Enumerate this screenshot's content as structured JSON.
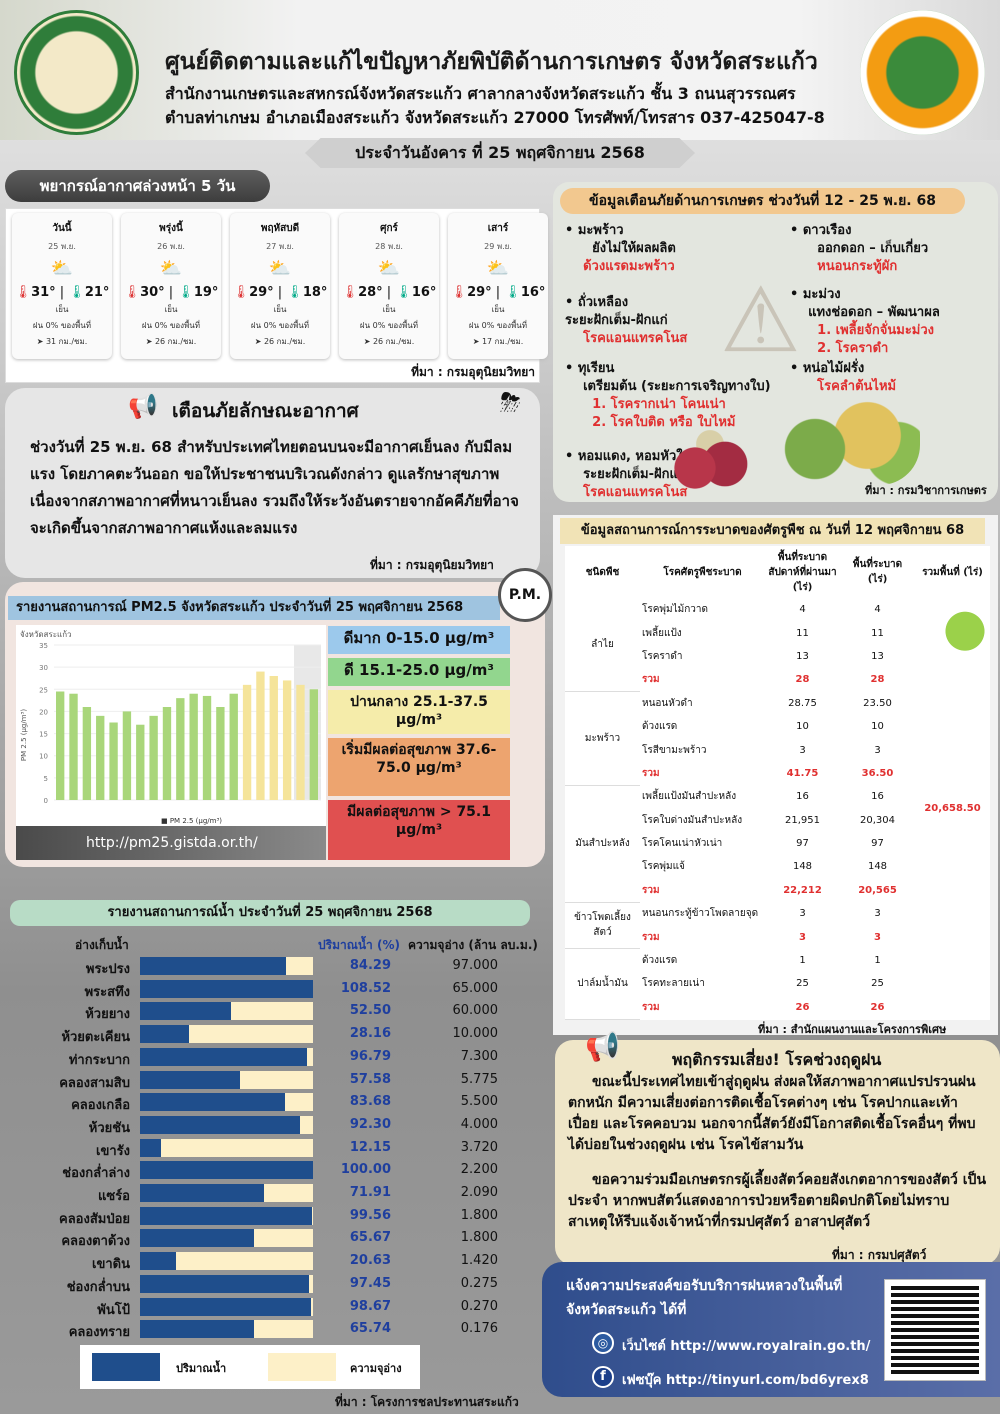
{
  "header": {
    "title": "ศูนย์ติดตามและแก้ไขปัญหาภัยพิบัติด้านการเกษตร จังหวัดสระแก้ว",
    "sub1": "สำนักงานเกษตรและสหกรณ์จังหวัดสระแก้ว ศาลากลางจังหวัดสระแก้ว ชั้น 3 ถนนสุวรรณศร",
    "sub2": "ตำบลท่าเกษม อำเภอเมืองสระแก้ว จังหวัดสระแก้ว 27000 โทรศัพท์/โทรสาร 037-425047-8",
    "date": "ประจำวันอังคาร ที่ 25 พฤศจิกายน 2568"
  },
  "forecast": {
    "title": "พยากรณ์อากาศล่วงหน้า 5 วัน",
    "source": "ที่มา : กรมอุตุนิยมวิทยา",
    "days": [
      {
        "name": "วันนี้",
        "date": "25 พ.ย.",
        "high": "31°",
        "low": "21°",
        "cond": "เย็น",
        "rain": "ฝน 0% ของพื้นที่",
        "wind": "31 กม./ชม."
      },
      {
        "name": "พรุ่งนี้",
        "date": "26 พ.ย.",
        "high": "30°",
        "low": "19°",
        "cond": "เย็น",
        "rain": "ฝน 0% ของพื้นที่",
        "wind": "26 กม./ชม."
      },
      {
        "name": "พฤหัสบดี",
        "date": "27 พ.ย.",
        "high": "29°",
        "low": "18°",
        "cond": "เย็น",
        "rain": "ฝน 0% ของพื้นที่",
        "wind": "26 กม./ชม."
      },
      {
        "name": "ศุกร์",
        "date": "28 พ.ย.",
        "high": "28°",
        "low": "16°",
        "cond": "เย็น",
        "rain": "ฝน 0% ของพื้นที่",
        "wind": "26 กม./ชม."
      },
      {
        "name": "เสาร์",
        "date": "29 พ.ย.",
        "high": "29°",
        "low": "16°",
        "cond": "เย็น",
        "rain": "ฝน 0% ของพื้นที่",
        "wind": "17 กม./ชม."
      }
    ]
  },
  "weather_warning": {
    "title": "เตือนภัยลักษณะอากาศ",
    "text": "ช่วงวันที่ 25 พ.ย. 68 สำหรับประเทศไทยตอนบนจะมีอากาศเย็นลง กับมีลมแรง โดยภาคตะวันออก ขอให้ประชาชนบริเวณดังกล่าว ดูแลรักษาสุขภาพเนื่องจากสภาพอากาศที่หนาวเย็นลง รวมถึงให้ระวังอันตรายจากอัคคีภัยที่อาจจะเกิดขึ้นจากสภาพอากาศแห้งและลมแรง",
    "source": "ที่มา : กรมอุตุนิยมวิทยา"
  },
  "pm25": {
    "title": "รายงานสถานการณ์ PM2.5 จังหวัดสระแก้ว ประจำวันที่ 25 พฤศจิกายน 2568",
    "badge": "P.M.",
    "chart_label": "จังหวัดสระแก้ว",
    "legend": "PM 2.5 (µg/m³)",
    "url": "http://pm25.gistda.or.th/",
    "levels": [
      {
        "label": "ดีมาก 0-15.0 µg/m³",
        "color": "#9cc9ec"
      },
      {
        "label": "ดี 15.1-25.0 µg/m³",
        "color": "#92d68e"
      },
      {
        "label": "ปานกลาง 25.1-37.5 µg/m³",
        "color": "#f5ecaa"
      },
      {
        "label": "เริ่มมีผลต่อสุขภาพ 37.6-75.0 µg/m³",
        "color": "#eda46f"
      },
      {
        "label": "มีผลต่อสุขภาพ > 75.1 µg/m³",
        "color": "#e05050"
      }
    ]
  },
  "chart_data": {
    "type": "bar",
    "title": "จังหวัดสระแก้ว",
    "ylabel": "PM 2.5 (µg/m³)",
    "ylim": [
      0,
      35
    ],
    "yticks": [
      0,
      5,
      10,
      15,
      20,
      25,
      30,
      35
    ],
    "series": [
      {
        "name": "PM 2.5 (µg/m³)",
        "values": [
          24.5,
          24,
          21,
          19,
          17.5,
          20,
          17,
          19,
          21,
          23,
          24,
          23.5,
          21,
          24,
          26,
          29,
          28,
          27,
          26,
          25
        ]
      }
    ]
  },
  "water": {
    "title": "รายงานสถานการณ์น้ำ ประจำวันที่ 25 พฤศจิกายน 2568",
    "col_name": "อ่างเก็บน้ำ",
    "col_pct": "ปริมาณน้ำ (%)",
    "col_cap": "ความจุอ่าง (ล้าน ลบ.ม.)",
    "legend_fill": "ปริมาณน้ำ",
    "legend_cap": "ความจุอ่าง",
    "source": "ที่มา : โครงการชลประทานสระแก้ว",
    "rows": [
      {
        "name": "พระปรง",
        "pct": 84.29,
        "pct_t": "84.29",
        "cap": "97.000"
      },
      {
        "name": "พระสทึง",
        "pct": 108.52,
        "pct_t": "108.52",
        "cap": "65.000"
      },
      {
        "name": "ห้วยยาง",
        "pct": 52.5,
        "pct_t": "52.50",
        "cap": "60.000"
      },
      {
        "name": "ห้วยตะเคียน",
        "pct": 28.16,
        "pct_t": "28.16",
        "cap": "10.000"
      },
      {
        "name": "ท่ากระบาก",
        "pct": 96.79,
        "pct_t": "96.79",
        "cap": "7.300"
      },
      {
        "name": "คลองสามสิบ",
        "pct": 57.58,
        "pct_t": "57.58",
        "cap": "5.775"
      },
      {
        "name": "คลองเกลือ",
        "pct": 83.68,
        "pct_t": "83.68",
        "cap": "5.500"
      },
      {
        "name": "ห้วยชัน",
        "pct": 92.3,
        "pct_t": "92.30",
        "cap": "4.000"
      },
      {
        "name": "เขารัง",
        "pct": 12.15,
        "pct_t": "12.15",
        "cap": "3.720"
      },
      {
        "name": "ช่องกล่ำล่าง",
        "pct": 100.0,
        "pct_t": "100.00",
        "cap": "2.200"
      },
      {
        "name": "แซร์อ",
        "pct": 71.91,
        "pct_t": "71.91",
        "cap": "2.090"
      },
      {
        "name": "คลองสัมป่อย",
        "pct": 99.56,
        "pct_t": "99.56",
        "cap": "1.800"
      },
      {
        "name": "คลองตาด้วง",
        "pct": 65.67,
        "pct_t": "65.67",
        "cap": "1.800"
      },
      {
        "name": "เขาดิน",
        "pct": 20.63,
        "pct_t": "20.63",
        "cap": "1.420"
      },
      {
        "name": "ช่องกล่ำบน",
        "pct": 97.45,
        "pct_t": "97.45",
        "cap": "0.275"
      },
      {
        "name": "พันโป้",
        "pct": 98.67,
        "pct_t": "98.67",
        "cap": "0.270"
      },
      {
        "name": "คลองทราย",
        "pct": 65.74,
        "pct_t": "65.74",
        "cap": "0.176"
      }
    ]
  },
  "ag_alert": {
    "title": "ข้อมูลเตือนภัยด้านการเกษตร ช่วงวันที่ 12 - 25 พ.ย. 68",
    "source": "ที่มา : กรมวิชาการเกษตร",
    "coconut": {
      "name": "มะพร้าว",
      "stage": "ยังไม่ให้ผลผลิต",
      "pest": "ด้วงแรดมะพร้าว"
    },
    "mungbean": {
      "name": "ถั่วเหลือง",
      "stage": "ระยะฝักเต็ม-ฝักแก่",
      "pest": "โรคแอนแทรคโนส"
    },
    "durian": {
      "name": "ทุเรียน",
      "stage": "เตรียมต้น (ระยะการเจริญทางใบ)",
      "pest1": "1. โรครากเน่า โคนเน่า",
      "pest2": "2. โรคใบติด หรือ ใบไหม้"
    },
    "onion": {
      "name": "หอมแดง, หอมหัวใหญ่",
      "stage": "ระยะฝักเต็ม-ฝักแก่",
      "pest": "โรคแอนแทรคโนส"
    },
    "marigold": {
      "name": "ดาวเรือง",
      "stage": "ออกดอก – เก็บเกี่ยว",
      "pest": "หนอนกระทู้ผัก"
    },
    "mango": {
      "name": "มะม่วง",
      "stage": "แทงช่อดอก – พัฒนาผล",
      "pest1": "1. เพลี้ยจักจั่นมะม่วง",
      "pest2": "2. โรคราดำ"
    },
    "asparagus": {
      "name": "หน่อไม้ฝรั่ง",
      "pest": "โรคลำต้นไหม้"
    }
  },
  "pest_table": {
    "title": "ข้อมูลสถานการณ์การระบาดของศัตรูพืช ณ วันที่ 12 พฤศจิกายน 68",
    "h1": "ชนิดพืช",
    "h2": "โรคศัตรูพืชระบาด",
    "h3": "พื้นที่ระบาดสัปดาห์ที่ผ่านมา (ไร่)",
    "h4": "พื้นที่ระบาด (ไร่)",
    "h5": "รวมพื้นที่ (ไร่)",
    "total": "20,658.50",
    "source": "ที่มา : สำนักแผนงานและโครงการพิเศษ",
    "groups": [
      {
        "crop": "ลำไย",
        "rows": [
          [
            "โรคพุ่มไม้กวาด",
            "4",
            "4"
          ],
          [
            "เพลี้ยแป้ง",
            "11",
            "11"
          ],
          [
            "โรคราดำ",
            "13",
            "13"
          ],
          [
            "รวม",
            "28",
            "28"
          ]
        ]
      },
      {
        "crop": "มะพร้าว",
        "rows": [
          [
            "หนอนหัวดำ",
            "28.75",
            "23.50"
          ],
          [
            "ด้วงแรด",
            "10",
            "10"
          ],
          [
            "โรสีขามะพร้าว",
            "3",
            "3"
          ],
          [
            "รวม",
            "41.75",
            "36.50"
          ]
        ]
      },
      {
        "crop": "มันสำปะหลัง",
        "rows": [
          [
            "เพลี้ยแป้งมันสำปะหลัง",
            "16",
            "16"
          ],
          [
            "โรคใบด่างมันสำปะหลัง",
            "21,951",
            "20,304"
          ],
          [
            "โรคโคนเน่าหัวเน่า",
            "97",
            "97"
          ],
          [
            "โรคพุ่มแจ้",
            "148",
            "148"
          ],
          [
            "รวม",
            "22,212",
            "20,565"
          ]
        ]
      },
      {
        "crop": "ข้าวโพดเลี้ยงสัตว์",
        "rows": [
          [
            "หนอนกระทู้ข้าวโพดลายจุด",
            "3",
            "3"
          ],
          [
            "รวม",
            "3",
            "3"
          ]
        ]
      },
      {
        "crop": "ปาล์มน้ำมัน",
        "rows": [
          [
            "ด้วงแรด",
            "1",
            "1"
          ],
          [
            "โรคทะลายเน่า",
            "25",
            "25"
          ],
          [
            "รวม",
            "26",
            "26"
          ]
        ]
      }
    ]
  },
  "livestock": {
    "title": "พฤติกรรมเสี่ยง! โรคช่วงฤดูฝน",
    "p1": "ขณะนี้ประเทศไทยเข้าสู่ฤดูฝน ส่งผลให้สภาพอากาศแปรปรวนฝนตกหนัก มีความเสี่ยงต่อการติดเชื้อโรคต่างๆ เช่น โรคปากและเท้าเปื่อย และโรคคอบวม นอกจากนี้สัตว์ยังมีโอกาสติดเชื้อโรคอื่นๆ ที่พบได้บ่อยในช่วงฤดูฝน เช่น โรคไข้สามวัน",
    "p2": "ขอความร่วมมือเกษตรกรผู้เลี้ยงสัตว์คอยสังเกตอาการของสัตว์ เป็นประจำ หากพบสัตว์แสดงอาการป่วยหรือตายผิดปกติโดยไม่ทราบสาเหตุให้รีบแจ้งเจ้าหน้าที่กรมปศุสัตว์ อาสาปศุสัตว์",
    "source": "ที่มา : กรมปศุสัตว์"
  },
  "royal_rain": {
    "title": "แจ้งความประสงค์ขอรับบริการฝนหลวงในพื้นที่จังหวัดสระแก้ว ได้ที่",
    "web": "เว็บไซต์ http://www.royalrain.go.th/",
    "fb": "เฟซบุ๊ค http://tinyurl.com/bd6yrex8"
  }
}
